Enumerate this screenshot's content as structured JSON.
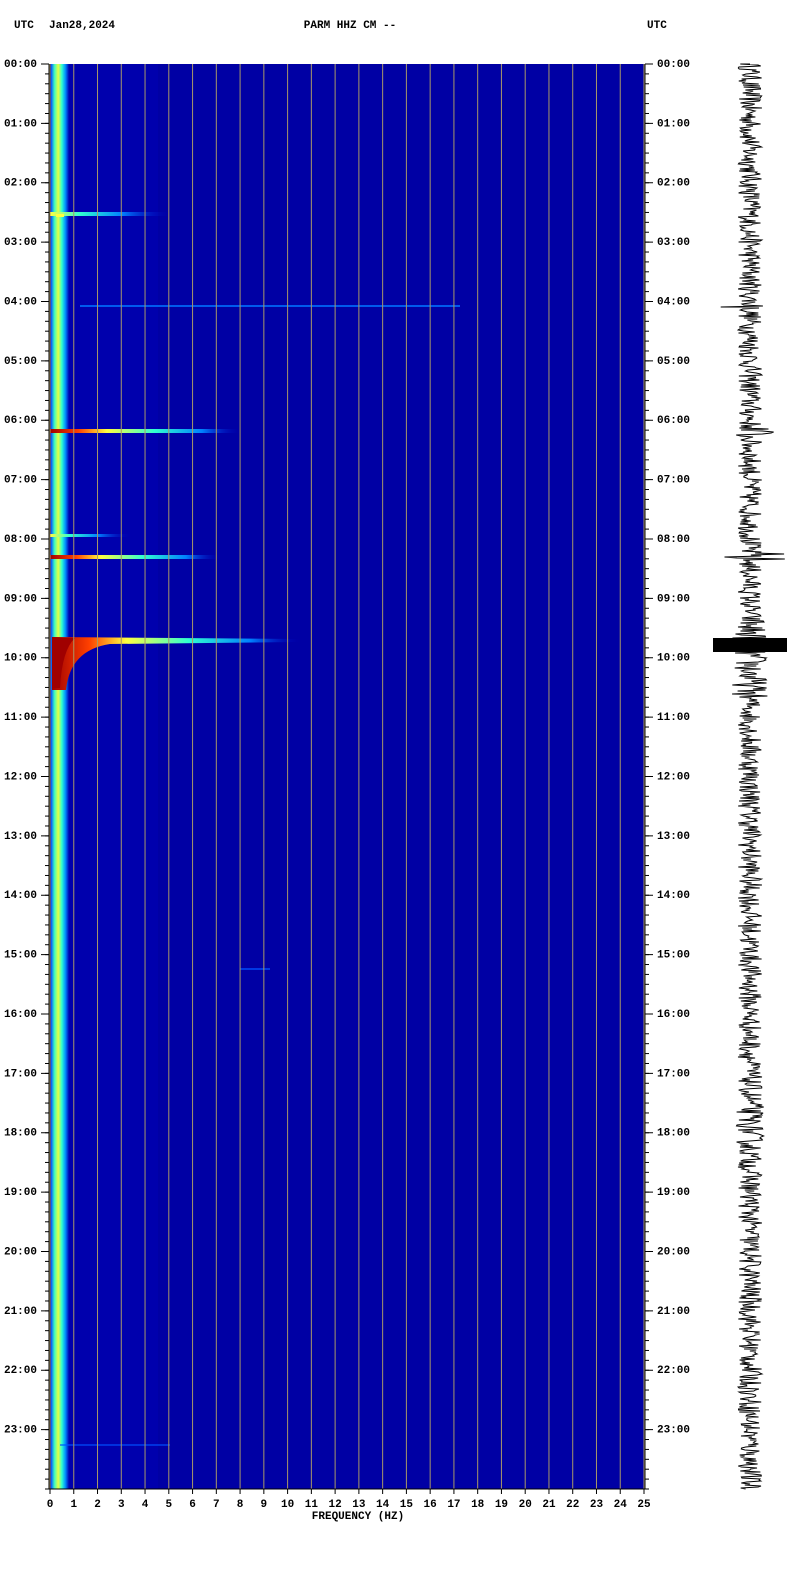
{
  "chart_data": {
    "type": "spectrogram",
    "title": "PARM HHZ CM --",
    "date": "Jan28,2024",
    "left_timezone": "UTC",
    "right_timezone": "UTC",
    "x_label": "FREQUENCY (HZ)",
    "xlim": [
      0,
      25
    ],
    "xticks": [
      0,
      1,
      2,
      3,
      4,
      5,
      6,
      7,
      8,
      9,
      10,
      11,
      12,
      13,
      14,
      15,
      16,
      17,
      18,
      19,
      20,
      21,
      22,
      23,
      24,
      25
    ],
    "ylim": [
      0,
      24
    ],
    "yticks": [
      {
        "value": 0,
        "label": "00:00"
      },
      {
        "value": 1,
        "label": "01:00"
      },
      {
        "value": 2,
        "label": "02:00"
      },
      {
        "value": 3,
        "label": "03:00"
      },
      {
        "value": 4,
        "label": "04:00"
      },
      {
        "value": 5,
        "label": "05:00"
      },
      {
        "value": 6,
        "label": "06:00"
      },
      {
        "value": 7,
        "label": "07:00"
      },
      {
        "value": 8,
        "label": "08:00"
      },
      {
        "value": 9,
        "label": "09:00"
      },
      {
        "value": 10,
        "label": "10:00"
      },
      {
        "value": 11,
        "label": "11:00"
      },
      {
        "value": 12,
        "label": "12:00"
      },
      {
        "value": 13,
        "label": "13:00"
      },
      {
        "value": 14,
        "label": "14:00"
      },
      {
        "value": 15,
        "label": "15:00"
      },
      {
        "value": 16,
        "label": "16:00"
      },
      {
        "value": 17,
        "label": "17:00"
      },
      {
        "value": 18,
        "label": "18:00"
      },
      {
        "value": 19,
        "label": "19:00"
      },
      {
        "value": 20,
        "label": "20:00"
      },
      {
        "value": 21,
        "label": "21:00"
      },
      {
        "value": 22,
        "label": "22:00"
      },
      {
        "value": 23,
        "label": "23:00"
      }
    ],
    "grid": true
  }
}
